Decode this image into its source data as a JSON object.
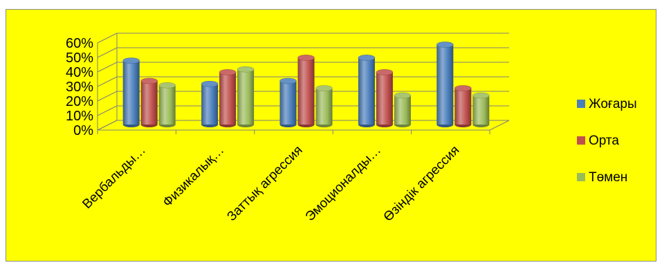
{
  "chart_data": {
    "type": "bar",
    "categories": [
      "Вербальды…",
      "Физикалық…",
      "Заттық агрессия",
      "Эмоционалды…",
      "Өзіндік агрессия"
    ],
    "series": [
      {
        "name": "Жоғары",
        "color": "#4a7ebb",
        "values": [
          44,
          28,
          30,
          46,
          55
        ]
      },
      {
        "name": "Орта",
        "color": "#c0504d",
        "values": [
          30,
          36,
          46,
          36,
          25
        ]
      },
      {
        "name": "Төмен",
        "color": "#9bbb59",
        "values": [
          27,
          38,
          25,
          20,
          20
        ]
      }
    ],
    "y_ticks": [
      "0%",
      "10%",
      "20%",
      "30%",
      "40%",
      "50%",
      "60%"
    ],
    "ylim": [
      0,
      60
    ],
    "y_unit": "%",
    "grid": true,
    "legend_position": "right",
    "style": "3d-cylinder",
    "background": "#ffff00"
  }
}
